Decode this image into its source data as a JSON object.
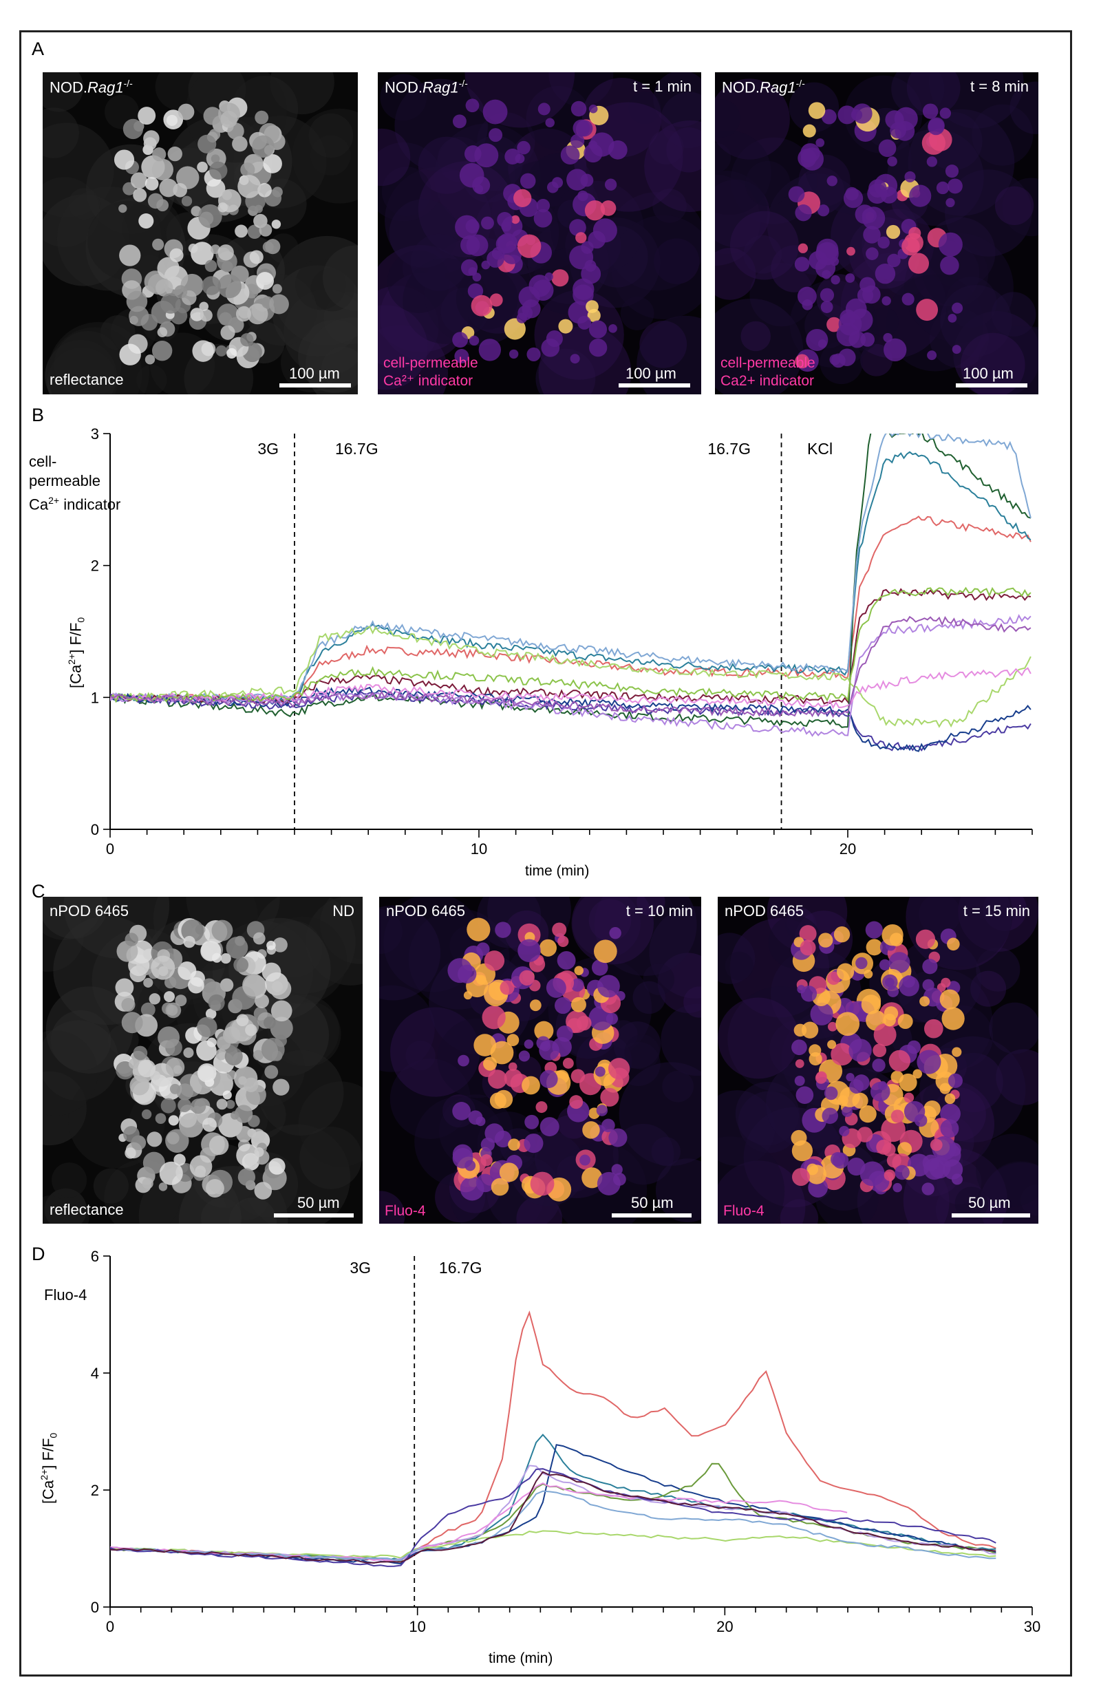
{
  "panels": {
    "a": {
      "letter": "A"
    },
    "b": {
      "letter": "B"
    },
    "c": {
      "letter": "C"
    },
    "d": {
      "letter": "D"
    }
  },
  "panel_a_images": [
    {
      "title_main": "NOD.",
      "title_gene": "Rag1",
      "title_sup": "-/-",
      "time": "",
      "channel_line1": "reflectance",
      "channel_line2": "",
      "scale": "100 µm"
    },
    {
      "title_main": "NOD.",
      "title_gene": "Rag1",
      "title_sup": "-/-",
      "time": "t = 1 min",
      "channel_line1": "cell-permeable",
      "channel_line2": "Ca²⁺ indicator",
      "scale": "100 µm"
    },
    {
      "title_main": "NOD.",
      "title_gene": "Rag1",
      "title_sup": "-/-",
      "time": "t = 8 min",
      "channel_line1": "cell-permeable",
      "channel_line2": "Ca2+ indicator",
      "scale": "100 µm"
    }
  ],
  "panel_c_images": [
    {
      "title": "nPOD 6465",
      "time": "ND",
      "channel": "reflectance",
      "scale": "50 µm"
    },
    {
      "title": "nPOD 6465",
      "time": "t = 10 min",
      "channel": "Fluo-4",
      "scale": "50 µm"
    },
    {
      "title": "nPOD 6465",
      "time": "t = 15 min",
      "channel": "Fluo-4",
      "scale": "50 µm"
    }
  ],
  "chart_data": [
    {
      "type": "line",
      "title": "",
      "dye_label_lines": [
        "cell-",
        "permeable",
        "Ca²⁺ indicator"
      ],
      "ylabel_main": "[Ca²⁺] F/F₀",
      "xlabel": "time (min)",
      "xlim": [
        0,
        25
      ],
      "ylim": [
        0,
        3
      ],
      "xticks_major": [
        0,
        10,
        20
      ],
      "yticks": [
        0,
        1,
        2,
        3
      ],
      "grid": false,
      "annotations": [
        {
          "text": "3G",
          "x": 4
        },
        {
          "text": "16.7G",
          "x": 6.1
        },
        {
          "text": "16.7G",
          "x": 16.2
        },
        {
          "text": "KCl",
          "x": 18.9
        }
      ],
      "vlines": [
        5,
        18.2
      ],
      "series": [
        {
          "color": "#e06666",
          "x": [
            0,
            5,
            5.7,
            7,
            10,
            15,
            20,
            20.3,
            21,
            22,
            25
          ],
          "y": [
            1,
            0.99,
            1.25,
            1.36,
            1.33,
            1.2,
            1.18,
            1.8,
            2.25,
            2.35,
            2.2
          ]
        },
        {
          "color": "#2a7f9a",
          "x": [
            0,
            5,
            5.7,
            7,
            10,
            15,
            20,
            20.3,
            21,
            22,
            25
          ],
          "y": [
            1,
            0.98,
            1.35,
            1.53,
            1.4,
            1.25,
            1.2,
            2.1,
            2.8,
            2.85,
            2.2
          ]
        },
        {
          "color": "#1f5f2f",
          "x": [
            0,
            5,
            5.7,
            7,
            10,
            15,
            20,
            20.2,
            20.6,
            22,
            25
          ],
          "y": [
            1,
            0.88,
            0.95,
            1.0,
            0.95,
            0.85,
            0.8,
            2.0,
            3.0,
            3.0,
            2.35
          ]
        },
        {
          "color": "#7fa7d4",
          "x": [
            0,
            5,
            5.7,
            7,
            10,
            15,
            20,
            20.3,
            21,
            22,
            24.5,
            25
          ],
          "y": [
            1,
            1.0,
            1.4,
            1.55,
            1.45,
            1.3,
            1.2,
            2.2,
            3.0,
            3.0,
            2.9,
            2.3
          ]
        },
        {
          "color": "#a8d76b",
          "x": [
            0,
            5,
            5.7,
            7,
            10,
            15,
            20,
            20.3,
            21,
            23,
            25
          ],
          "y": [
            1,
            1.05,
            1.45,
            1.52,
            1.35,
            1.2,
            1.15,
            1.05,
            0.82,
            0.8,
            1.3
          ]
        },
        {
          "color": "#7b1b3a",
          "x": [
            0,
            5,
            5.7,
            7,
            10,
            15,
            20,
            20.3,
            21,
            25
          ],
          "y": [
            1,
            0.97,
            1.12,
            1.15,
            1.05,
            1.0,
            0.98,
            1.6,
            1.8,
            1.75
          ]
        },
        {
          "color": "#4a3aa2",
          "x": [
            0,
            5,
            5.7,
            7,
            10,
            15,
            20,
            20.3,
            21,
            22,
            25
          ],
          "y": [
            1,
            0.93,
            0.98,
            1.02,
            0.97,
            0.9,
            0.88,
            0.75,
            0.63,
            0.62,
            0.8
          ]
        },
        {
          "color": "#173d8c",
          "x": [
            0,
            5,
            5.7,
            7,
            10,
            15,
            20,
            20.3,
            21,
            22,
            25
          ],
          "y": [
            1,
            0.95,
            1.05,
            1.05,
            1.0,
            0.93,
            0.9,
            0.7,
            0.62,
            0.62,
            0.92
          ]
        },
        {
          "color": "#b083e0",
          "x": [
            0,
            5,
            5.7,
            7,
            10,
            15,
            20,
            20.3,
            21,
            25
          ],
          "y": [
            1,
            0.98,
            1.0,
            1.02,
            0.97,
            0.82,
            0.72,
            1.3,
            1.5,
            1.6
          ]
        },
        {
          "color": "#e58ce0",
          "x": [
            0,
            5,
            5.7,
            7,
            10,
            15,
            20,
            20.3,
            21,
            22,
            25
          ],
          "y": [
            1,
            1.0,
            1.05,
            1.07,
            1.02,
            0.98,
            0.95,
            1.05,
            1.1,
            1.15,
            1.2
          ]
        },
        {
          "color": "#8bc34a",
          "x": [
            0,
            5,
            5.7,
            7,
            10,
            15,
            20,
            20.3,
            21,
            25
          ],
          "y": [
            1,
            1.0,
            1.15,
            1.2,
            1.15,
            1.05,
            1.0,
            1.5,
            1.8,
            1.8
          ]
        },
        {
          "color": "#9b59b6",
          "x": [
            0,
            5,
            5.7,
            7,
            10,
            15,
            20,
            20.3,
            21,
            22,
            25
          ],
          "y": [
            1,
            0.95,
            1.0,
            1.02,
            0.98,
            0.9,
            0.88,
            1.2,
            1.55,
            1.6,
            1.5
          ]
        }
      ]
    },
    {
      "type": "line",
      "title": "",
      "dye_label_lines": [
        "Fluo-4"
      ],
      "ylabel_main": "[Ca²⁺] F/F₀",
      "xlabel": "time (min)",
      "xlim": [
        0,
        30
      ],
      "ylim": [
        0,
        6
      ],
      "xticks_major": [
        0,
        10,
        20,
        30
      ],
      "yticks": [
        0,
        2,
        4,
        6
      ],
      "grid": false,
      "annotations": [
        {
          "text": "3G",
          "x": 7.8
        },
        {
          "text": "16.7G",
          "x": 10.7
        }
      ],
      "vlines": [
        9.9
      ],
      "series": [
        {
          "color": "#e06666",
          "x": [
            0,
            9.5,
            10,
            11,
            12,
            12.8,
            13.3,
            13.7,
            14,
            15,
            16,
            17,
            18,
            19,
            20,
            21,
            21.3,
            22,
            23,
            24,
            25,
            26,
            27,
            28,
            29
          ],
          "y": [
            1,
            0.8,
            1.0,
            1.3,
            1.5,
            2.6,
            4.6,
            5.1,
            4.2,
            3.7,
            3.6,
            3.2,
            3.4,
            2.9,
            3.1,
            3.8,
            4.1,
            3.0,
            2.2,
            2.0,
            1.9,
            1.7,
            1.3,
            1.1,
            1.0
          ]
        },
        {
          "color": "#2a7f9a",
          "x": [
            0,
            9.5,
            10,
            11,
            12,
            13,
            14,
            15,
            16,
            18,
            20,
            22,
            24,
            26,
            28,
            29
          ],
          "y": [
            1,
            0.8,
            1.0,
            1.0,
            1.2,
            1.6,
            3.0,
            2.3,
            2.1,
            1.9,
            1.7,
            1.6,
            1.4,
            1.2,
            1.0,
            1.0
          ]
        },
        {
          "color": "#173d8c",
          "x": [
            0,
            9.5,
            10,
            11,
            12,
            13,
            14,
            14.5,
            15,
            16,
            18,
            20,
            22,
            24,
            26,
            28,
            29
          ],
          "y": [
            1,
            0.75,
            0.95,
            1.0,
            1.1,
            1.3,
            1.6,
            2.8,
            2.7,
            2.5,
            2.1,
            1.8,
            1.6,
            1.4,
            1.2,
            1.0,
            0.95
          ]
        },
        {
          "color": "#6a9a3a",
          "x": [
            0,
            9.5,
            10,
            11,
            12,
            13,
            14,
            15,
            16,
            17,
            18,
            19,
            19.7,
            20.5,
            21,
            22,
            24,
            26,
            28,
            29
          ],
          "y": [
            1,
            0.8,
            1.0,
            1.1,
            1.2,
            1.5,
            2.1,
            2.0,
            1.9,
            1.8,
            1.9,
            2.1,
            2.5,
            1.9,
            1.6,
            1.5,
            1.3,
            1.1,
            1.0,
            0.9
          ]
        },
        {
          "color": "#a8d76b",
          "x": [
            0,
            9.5,
            10,
            12,
            14,
            16,
            18,
            20,
            22,
            24,
            26,
            28,
            29
          ],
          "y": [
            1,
            0.85,
            1.0,
            1.15,
            1.3,
            1.25,
            1.2,
            1.15,
            1.2,
            1.1,
            1.0,
            0.9,
            0.85
          ]
        },
        {
          "color": "#b9a0e6",
          "x": [
            0,
            9.5,
            10,
            11,
            12,
            13,
            13.7,
            14,
            15,
            16,
            18,
            20,
            22,
            24,
            26,
            28,
            29
          ],
          "y": [
            1,
            0.8,
            1.0,
            1.1,
            1.2,
            1.8,
            2.5,
            2.3,
            2.1,
            1.9,
            1.8,
            1.7,
            1.6,
            1.3,
            1.1,
            1.0,
            0.9
          ]
        },
        {
          "color": "#e58ce0",
          "x": [
            0,
            9.5,
            10,
            11,
            12,
            13,
            14,
            15,
            16,
            18,
            20,
            22,
            24
          ],
          "y": [
            1,
            0.8,
            1.0,
            1.1,
            1.3,
            1.7,
            2.1,
            2.0,
            1.9,
            1.85,
            1.8,
            1.8,
            1.6
          ]
        },
        {
          "color": "#4a3aa2",
          "x": [
            0,
            9.5,
            10,
            11,
            12,
            13,
            14,
            15,
            16,
            18,
            20,
            22,
            24,
            26,
            28,
            29
          ],
          "y": [
            1,
            0.7,
            1.1,
            1.6,
            1.75,
            1.9,
            2.4,
            2.2,
            2.0,
            1.8,
            1.6,
            1.5,
            1.5,
            1.4,
            1.2,
            1.1
          ]
        },
        {
          "color": "#7fa7d4",
          "x": [
            0,
            9.5,
            10,
            11,
            12,
            13,
            14,
            15,
            16,
            18,
            20,
            22,
            24,
            26,
            28,
            29
          ],
          "y": [
            1,
            0.8,
            1.0,
            1.0,
            1.1,
            1.4,
            2.0,
            1.9,
            1.7,
            1.5,
            1.5,
            1.4,
            1.1,
            1.0,
            0.85,
            0.8
          ]
        },
        {
          "color": "#5a1a3a",
          "x": [
            0,
            9.5,
            10,
            11,
            12,
            13,
            14,
            15,
            16,
            18,
            20,
            22,
            24,
            26,
            28,
            29
          ],
          "y": [
            1,
            0.75,
            0.95,
            1.0,
            1.1,
            1.3,
            2.3,
            2.2,
            2.0,
            1.8,
            1.7,
            1.6,
            1.3,
            1.1,
            1.0,
            0.95
          ]
        }
      ]
    }
  ]
}
